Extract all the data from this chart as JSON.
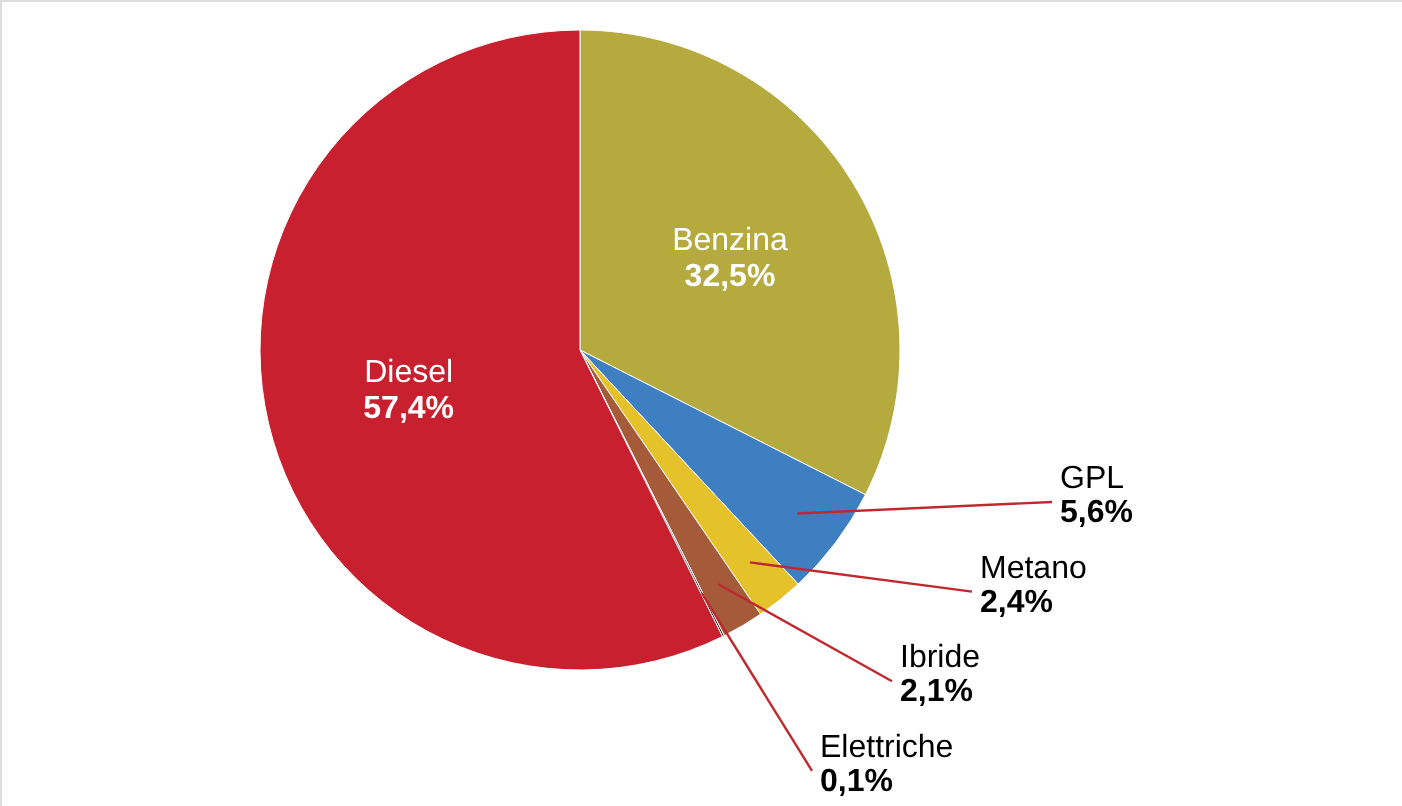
{
  "chart_data": {
    "type": "pie",
    "categories": [
      "Benzina",
      "GPL",
      "Metano",
      "Ibride",
      "Elettriche",
      "Diesel"
    ],
    "values": [
      32.5,
      5.6,
      2.4,
      2.1,
      0.1,
      57.4
    ],
    "colors": [
      "#b5aa3e",
      "#3d7fc1",
      "#e6c22a",
      "#a55a3a",
      "#3b2a22",
      "#c9202f"
    ],
    "value_labels": [
      "32,5%",
      "5,6%",
      "2,4%",
      "2,1%",
      "0,1%",
      "57,4%"
    ],
    "legend": false
  }
}
